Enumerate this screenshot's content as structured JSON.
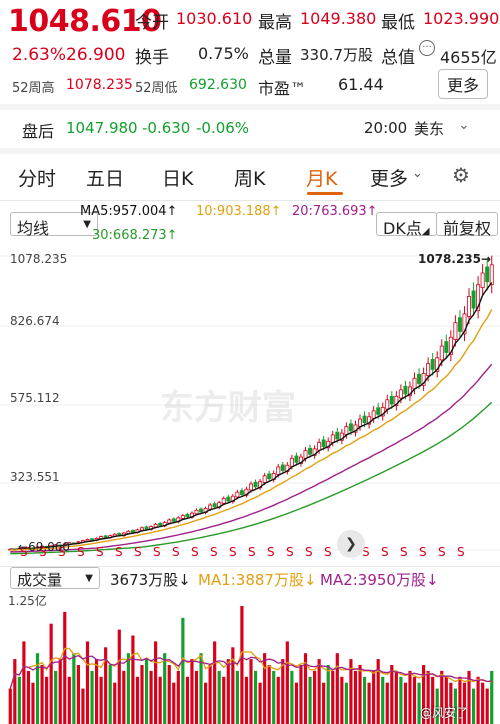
{
  "quote": {
    "price": "1048.610",
    "change_pct": "2.63%",
    "change": "26.900",
    "open_label": "今开",
    "open": "1030.610",
    "high_label": "最高",
    "high": "1049.380",
    "low_label": "最低",
    "low": "1023.990",
    "turnover_label": "换手",
    "turnover": "0.75%",
    "volume_label": "总量",
    "volume": "330.7万股",
    "mktcap_label": "总值",
    "mktcap": "4655亿",
    "w52high_label": "52周高",
    "w52high": "1078.235",
    "w52low_label": "52周低",
    "w52low": "692.630",
    "pe_label": "市盈™",
    "pe": "61.44",
    "more_label": "更多"
  },
  "afterhours": {
    "label": "盘后",
    "price": "1047.980",
    "change": "-0.630",
    "pct": "-0.06%",
    "time": "20:00",
    "tz": "美东"
  },
  "tabs": [
    {
      "label": "分时",
      "active": false
    },
    {
      "label": "五日",
      "active": false
    },
    {
      "label": "日K",
      "active": false
    },
    {
      "label": "周K",
      "active": false
    },
    {
      "label": "月K",
      "active": true
    },
    {
      "label": "更多",
      "active": false
    }
  ],
  "chart_controls": {
    "ma_select": "均线",
    "ma5": "MA5:957.004↑",
    "ma10": "10:903.188↑",
    "ma20": "20:763.693↑",
    "ma30": "30:668.273↑",
    "dk_label": "DK点",
    "adjust_label": "前复权"
  },
  "colors": {
    "up": "#d9001b",
    "down": "#12a02e",
    "accent": "#e0620d",
    "ma5": "#111111",
    "ma10": "#e0a010",
    "ma20": "#a0208a",
    "ma30": "#2a9a2a"
  },
  "chart_data": {
    "type": "candlestick",
    "y_ticks": [
      "1078.235",
      "826.674",
      "575.112",
      "323.551"
    ],
    "ylim": [
      72,
      1078.235
    ],
    "max_label": "1078.235",
    "min_label": "69.060",
    "watermark": "东方财富",
    "close": [
      75,
      74,
      77,
      76,
      80,
      79,
      83,
      85,
      82,
      86,
      90,
      88,
      93,
      97,
      95,
      100,
      104,
      108,
      106,
      112,
      118,
      115,
      121,
      126,
      122,
      130,
      136,
      133,
      141,
      148,
      144,
      152,
      160,
      156,
      166,
      175,
      170,
      182,
      190,
      186,
      198,
      208,
      202,
      214,
      226,
      220,
      234,
      248,
      240,
      256,
      270,
      262,
      280,
      298,
      288,
      306,
      326,
      316,
      334,
      356,
      344,
      362,
      386,
      372,
      390,
      412,
      400,
      418,
      440,
      426,
      444,
      466,
      452,
      472,
      494,
      480,
      500,
      520,
      508,
      528,
      548,
      536,
      560,
      586,
      572,
      598,
      620,
      606,
      630,
      660,
      642,
      676,
      710,
      690,
      730,
      770,
      748,
      800,
      850,
      820,
      880,
      940,
      900,
      980,
      1020,
      990,
      1048
    ]
  },
  "volume_controls": {
    "select": "成交量",
    "total": "3673万股↓",
    "ma1": "MA1:3887万股↓",
    "ma2": "MA2:3950万股↓",
    "y_tick": "1.25亿"
  },
  "volume_data": {
    "values": [
      30,
      55,
      40,
      70,
      45,
      35,
      60,
      50,
      40,
      85,
      45,
      55,
      95,
      40,
      60,
      50,
      30,
      70,
      45,
      55,
      40,
      65,
      50,
      35,
      80,
      45,
      60,
      75,
      40,
      50,
      55,
      45,
      70,
      40,
      60,
      50,
      35,
      45,
      90,
      40,
      55,
      45,
      60,
      35,
      50,
      70,
      45,
      40,
      55,
      65,
      45,
      100,
      40,
      55,
      45,
      35,
      60,
      50,
      45,
      40,
      55,
      70,
      45,
      35,
      50,
      60,
      40,
      45,
      55,
      35,
      50,
      45,
      60,
      40,
      35,
      55,
      45,
      50,
      40,
      35,
      45,
      55,
      40,
      35,
      50,
      45,
      40,
      35,
      45,
      40,
      35,
      50,
      45,
      40,
      30,
      45,
      40,
      35,
      30,
      40,
      35,
      45,
      30,
      40,
      35,
      30,
      45
    ],
    "ma_note": "",
    "watermark": "@风安了"
  }
}
